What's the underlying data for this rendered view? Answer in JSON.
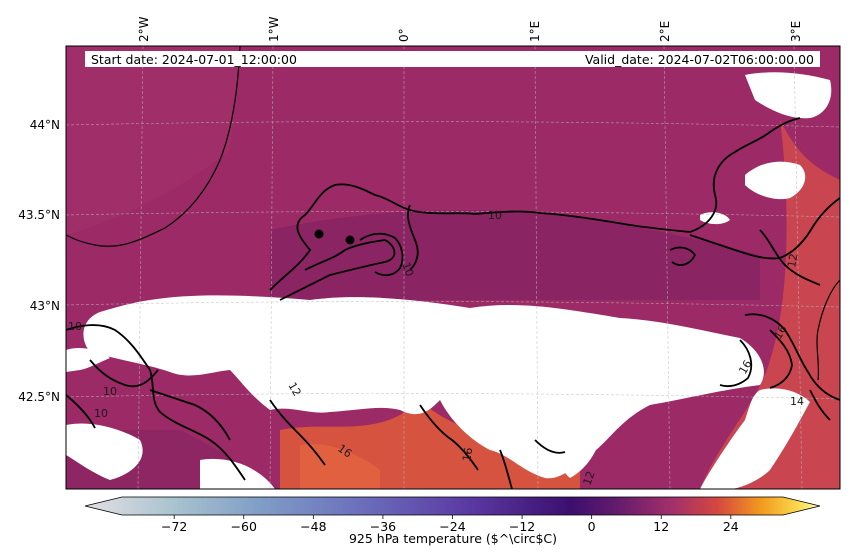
{
  "map": {
    "start_label": "Start date: 2024-07-01_12:00:00",
    "valid_label": "Valid_date: 2024-07-02T06:00:00.00",
    "lon_ticks": [
      "2°W",
      "1°W",
      "0°",
      "1°E",
      "2°E",
      "3°E"
    ],
    "lat_ticks": [
      "44°N",
      "43.5°N",
      "43°N",
      "42.5°N"
    ],
    "contour_labels": [
      "10",
      "10",
      "10",
      "10",
      "10",
      "12",
      "12",
      "16",
      "16",
      "16",
      "14",
      "12",
      "16"
    ],
    "colors": {
      "field_main": "#9b2a66",
      "field_dark": "#7d2060",
      "field_warm": "#c9454f",
      "field_hot": "#e0603f",
      "mask": "#ffffff",
      "contour": "#000000"
    }
  },
  "colorbar": {
    "label": "925 hPa temperature ($^\\circ$C)",
    "ticks": [
      "−72",
      "−60",
      "−48",
      "−36",
      "−24",
      "−12",
      "0",
      "12",
      "24"
    ],
    "range": [
      -81,
      33
    ],
    "tick_values": [
      -72,
      -60,
      -48,
      -36,
      -24,
      -12,
      0,
      12,
      24
    ],
    "stops": [
      "#e4dfe4",
      "#a9c3cf",
      "#7f9dc6",
      "#6b6dbb",
      "#5b3aa3",
      "#3b0f6e",
      "#611a6d",
      "#a3306a",
      "#d5473f",
      "#f29a1e",
      "#fbd94e",
      "#fcfea4"
    ]
  }
}
